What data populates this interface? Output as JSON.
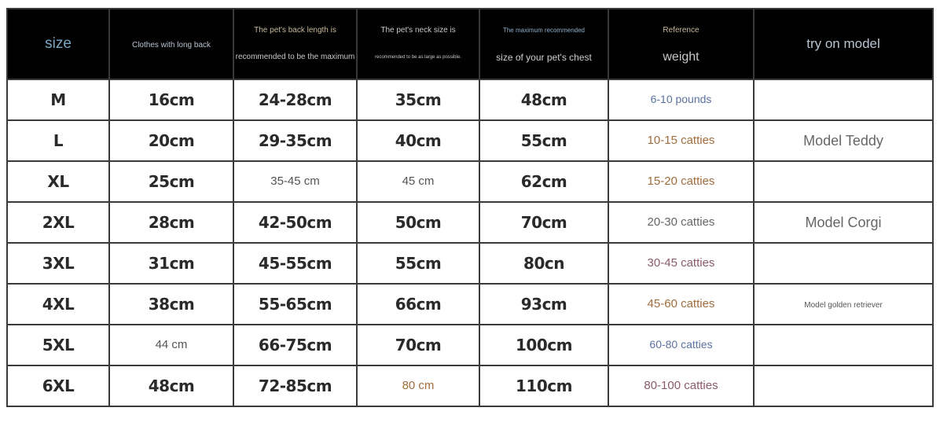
{
  "colors": {
    "header_bg": "#000000",
    "size_header": "#7aa6c2",
    "header_text": "#c8c8c8",
    "header_tan": "#c9b99a",
    "brown": "#a06d3c",
    "blue": "#5b73a0",
    "gray": "#666666",
    "mauve": "#8a5a6a"
  },
  "header": {
    "size": "size",
    "back": "Clothes with long back",
    "back_length_1": "The pet's back length is",
    "back_length_2": "recommended to be the maximum",
    "neck_1": "The pet's neck size is",
    "neck_2": "recommended to be as large as possible.",
    "chest_1": "The maximum recommended",
    "chest_2": "size of your pet's chest",
    "weight_1": "Reference",
    "weight_2": "weight",
    "model": "try on model"
  },
  "rows": [
    {
      "size": "M",
      "back": {
        "t": "16cm",
        "s": "bold"
      },
      "length": {
        "t": "24-28cm",
        "s": "bold"
      },
      "neck": {
        "t": "35cm",
        "s": "bold"
      },
      "chest": {
        "t": "48cm",
        "s": "bold"
      },
      "weight": {
        "t": "6-10 pounds",
        "s": "c-blue"
      },
      "model": {
        "t": "",
        "s": "model"
      }
    },
    {
      "size": "L",
      "back": {
        "t": "20cm",
        "s": "bold"
      },
      "length": {
        "t": "29-35cm",
        "s": "bold"
      },
      "neck": {
        "t": "40cm",
        "s": "bold"
      },
      "chest": {
        "t": "55cm",
        "s": "bold"
      },
      "weight": {
        "t": "10-15 catties",
        "s": "c-brown"
      },
      "model": {
        "t": "Model Teddy",
        "s": "model"
      }
    },
    {
      "size": "XL",
      "back": {
        "t": "25cm",
        "s": "bold"
      },
      "length": {
        "t": "35-45 cm",
        "s": "plain"
      },
      "neck": {
        "t": "45 cm",
        "s": "plain"
      },
      "chest": {
        "t": "62cm",
        "s": "bold"
      },
      "weight": {
        "t": "15-20 catties",
        "s": "c-brown"
      },
      "model": {
        "t": "",
        "s": "model"
      }
    },
    {
      "size": "2XL",
      "back": {
        "t": "28cm",
        "s": "bold"
      },
      "length": {
        "t": "42-50cm",
        "s": "bold"
      },
      "neck": {
        "t": "50cm",
        "s": "bold"
      },
      "chest": {
        "t": "70cm",
        "s": "bold"
      },
      "weight": {
        "t": "20-30 catties",
        "s": "c-gray"
      },
      "model": {
        "t": "Model Corgi",
        "s": "model"
      }
    },
    {
      "size": "3XL",
      "back": {
        "t": "31cm",
        "s": "bold"
      },
      "length": {
        "t": "45-55cm",
        "s": "bold"
      },
      "neck": {
        "t": "55cm",
        "s": "bold"
      },
      "chest": {
        "t": "80cn",
        "s": "bold"
      },
      "weight": {
        "t": "30-45 catties",
        "s": "c-mauve"
      },
      "model": {
        "t": "",
        "s": "model"
      }
    },
    {
      "size": "4XL",
      "back": {
        "t": "38cm",
        "s": "bold"
      },
      "length": {
        "t": "55-65cm",
        "s": "bold"
      },
      "neck": {
        "t": "66cm",
        "s": "bold"
      },
      "chest": {
        "t": "93cm",
        "s": "bold"
      },
      "weight": {
        "t": "45-60 catties",
        "s": "c-brown"
      },
      "model": {
        "t": "Model golden retriever",
        "s": "model-small"
      }
    },
    {
      "size": "5XL",
      "back": {
        "t": "44 cm",
        "s": "plain"
      },
      "length": {
        "t": "66-75cm",
        "s": "bold"
      },
      "neck": {
        "t": "70cm",
        "s": "bold"
      },
      "chest": {
        "t": "100cm",
        "s": "bold"
      },
      "weight": {
        "t": "60-80 catties",
        "s": "c-blue"
      },
      "model": {
        "t": "",
        "s": "model"
      }
    },
    {
      "size": "6XL",
      "back": {
        "t": "48cm",
        "s": "bold"
      },
      "length": {
        "t": "72-85cm",
        "s": "bold"
      },
      "neck": {
        "t": "80 cm",
        "s": "c-brown"
      },
      "chest": {
        "t": "110cm",
        "s": "bold"
      },
      "weight": {
        "t": "80-100 catties",
        "s": "c-mauve"
      },
      "model": {
        "t": "",
        "s": "model"
      }
    }
  ]
}
